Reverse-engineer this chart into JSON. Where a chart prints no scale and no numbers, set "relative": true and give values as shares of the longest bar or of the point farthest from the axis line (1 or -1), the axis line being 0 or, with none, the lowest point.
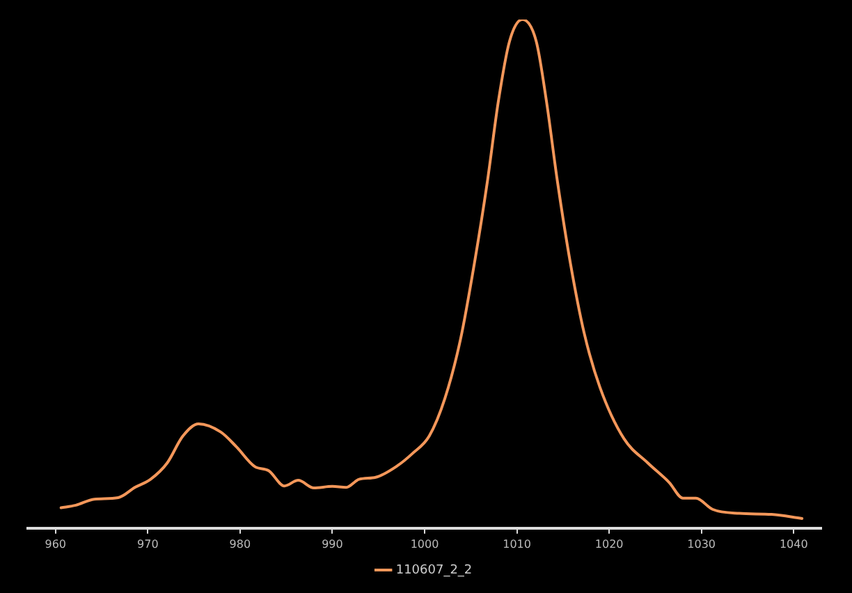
{
  "chart_data": {
    "type": "line",
    "relative": true,
    "xlim": [
      957,
      1043
    ],
    "xticks": [
      960,
      970,
      980,
      990,
      1000,
      1010,
      1020,
      1030,
      1040
    ],
    "grid": false,
    "legend": "bottom",
    "marker": "none",
    "line_style": "solid",
    "series": [
      {
        "name": "110607_2_2",
        "color": "#f4975a",
        "x": [
          960.6,
          962.2,
          964.2,
          966.8,
          968.6,
          970.3,
          972.1,
          973.8,
          975.5,
          977.9,
          979.6,
          981.6,
          983.1,
          984.8,
          986.3,
          988.0,
          990.0,
          991.5,
          992.9,
          994.7,
          997.0,
          998.7,
          1000.5,
          1002.2,
          1003.9,
          1005.4,
          1006.8,
          1008.0,
          1009.2,
          1010.6,
          1012.1,
          1013.2,
          1014.4,
          1015.8,
          1017.3,
          1019.0,
          1021.6,
          1024.2,
          1026.5,
          1028.0,
          1029.4,
          1031.2,
          1034.1,
          1037.6,
          1040.9
        ],
        "values": [
          0.04,
          0.045,
          0.057,
          0.06,
          0.08,
          0.096,
          0.128,
          0.181,
          0.205,
          0.189,
          0.16,
          0.121,
          0.113,
          0.083,
          0.094,
          0.079,
          0.082,
          0.08,
          0.096,
          0.1,
          0.122,
          0.147,
          0.181,
          0.255,
          0.372,
          0.521,
          0.681,
          0.84,
          0.957,
          1.0,
          0.957,
          0.84,
          0.681,
          0.521,
          0.383,
          0.277,
          0.176,
          0.128,
          0.09,
          0.059,
          0.059,
          0.037,
          0.029,
          0.027,
          0.019
        ]
      }
    ]
  }
}
